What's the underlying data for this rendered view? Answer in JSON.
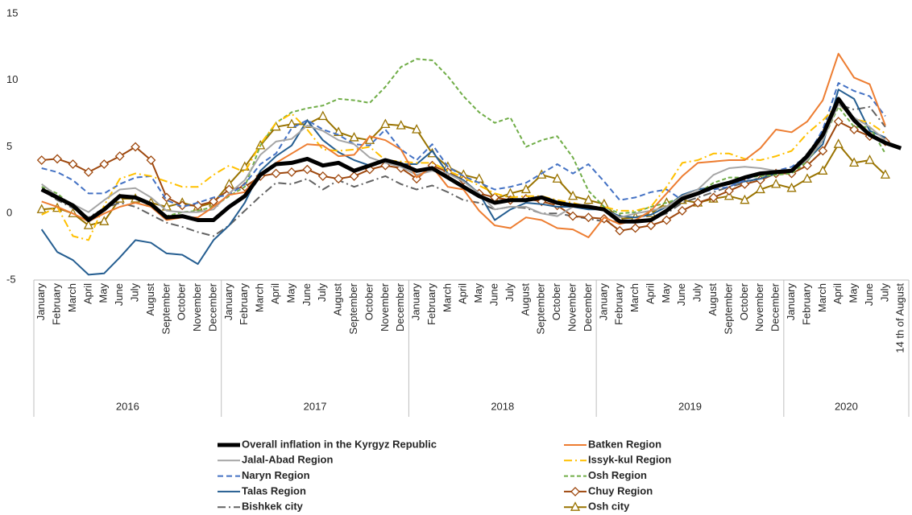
{
  "chart_data": {
    "type": "line",
    "groups": [
      {
        "label": "2016",
        "categories": [
          "January",
          "February",
          "March",
          "April",
          "May",
          "June",
          "July",
          "August",
          "September",
          "October",
          "November",
          "December"
        ]
      },
      {
        "label": "2017",
        "categories": [
          "January",
          "February",
          "March",
          "April",
          "May",
          "June",
          "July",
          "August",
          "September",
          "October",
          "November",
          "December"
        ]
      },
      {
        "label": "2018",
        "categories": [
          "January",
          "February",
          "March",
          "April",
          "May",
          "June",
          "July",
          "August",
          "September",
          "October",
          "November",
          "December"
        ]
      },
      {
        "label": "2019",
        "categories": [
          "January",
          "February",
          "March",
          "April",
          "May",
          "June",
          "July",
          "August",
          "September",
          "October",
          "November",
          "December"
        ]
      },
      {
        "label": "2020",
        "categories": [
          "January",
          "February",
          "March",
          "April",
          "May",
          "June",
          "July",
          "14 th of August"
        ]
      }
    ],
    "ylim": [
      -5,
      15
    ],
    "yticks": [
      -5,
      0,
      5,
      10,
      15
    ],
    "grid": false,
    "legend": "bottom",
    "series": [
      {
        "name": "Overall inflation in the Kyrgyz Republic",
        "color": "#000000",
        "width": 5,
        "values": [
          1.8,
          1.2,
          0.6,
          -0.5,
          0.3,
          1.3,
          1.2,
          0.7,
          -0.3,
          -0.2,
          -0.5,
          -0.5,
          0.5,
          1.3,
          2.9,
          3.7,
          3.8,
          4.1,
          3.6,
          3.8,
          3.2,
          3.6,
          4.0,
          3.7,
          3.2,
          3.4,
          2.7,
          2.0,
          1.3,
          0.8,
          1.0,
          1.0,
          1.2,
          0.8,
          0.6,
          0.5,
          0.3,
          -0.6,
          -0.6,
          -0.5,
          0.2,
          1.1,
          1.5,
          2.0,
          2.3,
          2.7,
          3.0,
          3.1,
          3.2,
          4.3,
          5.9,
          8.6,
          7.0,
          5.9,
          5.3,
          4.9
        ]
      },
      {
        "name": "Batken Region",
        "color": "#ed7d31",
        "width": 2,
        "values": [
          0.9,
          0.5,
          0.0,
          -0.6,
          0.0,
          0.5,
          0.8,
          0.5,
          -0.5,
          -0.3,
          -0.3,
          0.5,
          1.4,
          1.6,
          3.0,
          3.8,
          4.5,
          5.2,
          5.1,
          4.3,
          4.4,
          5.8,
          5.5,
          4.8,
          2.7,
          3.5,
          2.0,
          1.8,
          0.2,
          -0.9,
          -1.1,
          -0.3,
          -0.5,
          -1.1,
          -1.2,
          -1.8,
          -0.3,
          -0.8,
          -0.5,
          0.2,
          1.5,
          2.8,
          3.8,
          3.9,
          4.0,
          4.0,
          4.9,
          6.3,
          6.1,
          6.9,
          8.5,
          12.0,
          10.2,
          9.7,
          6.6,
          null
        ]
      },
      {
        "name": "Jalal-Abad Region",
        "color": "#a5a5a5",
        "width": 2,
        "values": [
          2.2,
          1.3,
          0.7,
          0.1,
          1.0,
          1.8,
          1.9,
          1.2,
          0.2,
          0.1,
          0.1,
          0.3,
          1.5,
          2.5,
          4.4,
          5.4,
          5.6,
          6.6,
          6.2,
          5.5,
          5.2,
          4.2,
          3.8,
          3.5,
          2.9,
          3.2,
          3.0,
          2.4,
          1.5,
          0.3,
          0.5,
          0.5,
          0.0,
          -0.2,
          0.5,
          0.6,
          0.3,
          -0.3,
          0.0,
          0.2,
          0.5,
          1.3,
          1.8,
          2.9,
          3.4,
          3.5,
          3.4,
          3.2,
          3.3,
          4.0,
          5.5,
          8.2,
          7.2,
          6.5,
          5.5,
          null
        ]
      },
      {
        "name": "Issyk-kul Region",
        "color": "#ffc000",
        "width": 2,
        "dash": "10 4 2 4",
        "values": [
          -0.1,
          0.5,
          -1.7,
          -2.0,
          0.6,
          2.6,
          3.0,
          2.8,
          2.4,
          2.0,
          2.0,
          2.9,
          3.6,
          3.1,
          5.2,
          6.8,
          7.5,
          6.3,
          4.8,
          4.7,
          4.8,
          5.0,
          4.0,
          3.9,
          3.8,
          3.8,
          3.2,
          2.7,
          2.1,
          1.5,
          1.2,
          1.3,
          1.3,
          1.0,
          0.8,
          0.5,
          0.5,
          0.2,
          0.2,
          0.5,
          2.0,
          3.8,
          4.0,
          4.5,
          4.5,
          4.1,
          4.0,
          4.3,
          4.7,
          6.0,
          7.0,
          8.2,
          7.1,
          6.8,
          6.0,
          null
        ]
      },
      {
        "name": "Naryn Region",
        "color": "#4472c4",
        "width": 2,
        "dash": "7 4",
        "values": [
          3.4,
          3.1,
          2.5,
          1.5,
          1.5,
          2.2,
          2.7,
          2.8,
          1.0,
          0.5,
          0.8,
          1.2,
          1.4,
          2.2,
          3.7,
          4.5,
          6.4,
          7.0,
          6.3,
          5.9,
          5.2,
          5.1,
          6.3,
          4.8,
          4.0,
          5.2,
          3.5,
          2.8,
          2.3,
          1.8,
          2.0,
          2.3,
          3.0,
          3.7,
          3.0,
          3.7,
          2.4,
          1.0,
          1.2,
          1.6,
          1.8,
          1.0,
          1.5,
          1.8,
          2.0,
          2.5,
          3.0,
          3.2,
          3.5,
          4.3,
          6.3,
          9.8,
          9.2,
          8.8,
          7.3,
          null
        ]
      },
      {
        "name": "Osh Region",
        "color": "#70ad47",
        "width": 2,
        "dash": "5 3",
        "values": [
          2.0,
          1.5,
          0.5,
          -0.5,
          0.3,
          1.2,
          1.3,
          0.5,
          -0.2,
          0.1,
          0.2,
          0.5,
          1.3,
          2.0,
          5.1,
          6.8,
          7.6,
          7.9,
          8.1,
          8.6,
          8.5,
          8.3,
          9.5,
          11.0,
          11.6,
          11.5,
          10.3,
          8.8,
          7.6,
          6.8,
          7.2,
          5.0,
          5.5,
          5.8,
          4.2,
          1.7,
          0.5,
          0.0,
          0.1,
          0.5,
          0.8,
          1.2,
          1.5,
          2.3,
          2.7,
          2.7,
          2.8,
          2.9,
          3.0,
          3.9,
          5.5,
          8.0,
          6.5,
          6.5,
          4.5,
          null
        ]
      },
      {
        "name": "Talas Region",
        "color": "#255e91",
        "width": 2,
        "values": [
          -1.2,
          -2.9,
          -3.5,
          -4.6,
          -4.5,
          -3.3,
          -2.0,
          -2.2,
          -3.0,
          -3.1,
          -3.8,
          -2.0,
          -0.9,
          0.8,
          3.2,
          4.3,
          5.1,
          7.0,
          5.5,
          4.6,
          4.0,
          3.6,
          4.0,
          3.7,
          3.7,
          4.7,
          3.0,
          2.5,
          1.5,
          -0.5,
          0.3,
          0.8,
          0.7,
          0.5,
          0.5,
          0.3,
          0.3,
          -0.2,
          -0.3,
          -0.1,
          0.5,
          1.4,
          1.8,
          2.0,
          2.2,
          2.4,
          2.6,
          3.0,
          3.2,
          4.0,
          5.2,
          9.3,
          8.6,
          6.2,
          5.7,
          null
        ]
      },
      {
        "name": "Chuy Region",
        "color": "#9e480e",
        "width": 2,
        "marker": "diamond",
        "values": [
          4.0,
          4.1,
          3.7,
          3.1,
          3.7,
          4.3,
          5.0,
          4.0,
          1.2,
          0.6,
          0.6,
          0.9,
          1.8,
          2.0,
          2.8,
          3.0,
          3.1,
          3.3,
          2.8,
          2.6,
          2.8,
          3.3,
          3.6,
          3.4,
          2.6,
          3.6,
          3.1,
          2.5,
          1.5,
          1.2,
          1.0,
          1.1,
          0.9,
          0.6,
          -0.2,
          -0.3,
          -0.4,
          -1.3,
          -1.1,
          -0.9,
          -0.5,
          0.2,
          0.8,
          1.2,
          1.7,
          2.2,
          2.5,
          3.0,
          3.0,
          3.6,
          4.7,
          6.9,
          6.3,
          5.8,
          5.4,
          null
        ]
      },
      {
        "name": "Bishkek city",
        "color": "#636363",
        "width": 2,
        "dash": "10 4 2 4",
        "values": [
          1.8,
          1.0,
          0.4,
          -0.3,
          0.4,
          0.8,
          0.5,
          -0.1,
          -0.7,
          -1.0,
          -1.4,
          -1.7,
          -0.9,
          0.2,
          1.3,
          2.3,
          2.2,
          2.6,
          1.8,
          2.5,
          2.0,
          2.4,
          2.8,
          2.2,
          1.8,
          2.1,
          1.6,
          1.0,
          0.8,
          0.3,
          0.5,
          0.4,
          0.0,
          0.0,
          -0.2,
          -0.4,
          -0.6,
          -0.6,
          -0.7,
          -0.4,
          0.0,
          0.8,
          1.2,
          1.6,
          2.0,
          2.3,
          2.7,
          3.0,
          3.2,
          4.5,
          6.0,
          8.2,
          7.8,
          8.0,
          6.5,
          null
        ]
      },
      {
        "name": "Osh city",
        "color": "#997300",
        "width": 2,
        "marker": "triangle",
        "values": [
          0.3,
          0.4,
          0.0,
          -0.9,
          -0.6,
          1.1,
          1.1,
          0.8,
          0.5,
          0.8,
          0.5,
          0.8,
          2.2,
          3.5,
          5.1,
          6.5,
          6.7,
          6.7,
          7.3,
          6.1,
          5.7,
          5.5,
          6.7,
          6.6,
          6.3,
          4.5,
          3.5,
          2.9,
          2.6,
          1.1,
          1.5,
          1.8,
          2.9,
          2.6,
          1.3,
          1.0,
          0.7,
          -0.4,
          -0.3,
          0.0,
          0.8,
          1.0,
          0.8,
          1.1,
          1.3,
          1.0,
          1.8,
          2.2,
          1.9,
          2.6,
          3.2,
          5.2,
          3.8,
          4.0,
          2.9,
          null
        ]
      }
    ]
  }
}
